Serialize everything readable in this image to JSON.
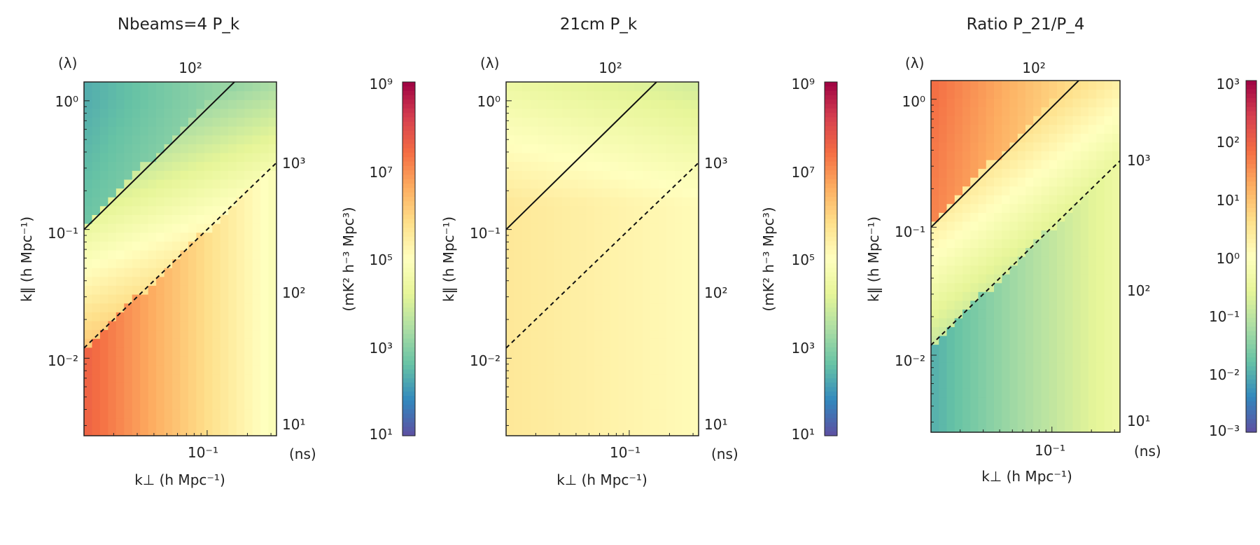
{
  "chart_data": [
    {
      "type": "heatmap",
      "title": "Nbeams=4 P_k",
      "xlabel": "k⊥ (h Mpc⁻¹)",
      "ylabel": "k‖ (h Mpc⁻¹)",
      "top_axis_unit": "(λ)",
      "top_ticks": [
        "10²"
      ],
      "right_axis_unit": "(ns)",
      "right_ticks": [
        "10³",
        "10²",
        "10¹"
      ],
      "x_ticks": [
        "10⁻¹"
      ],
      "y_ticks": [
        "10⁰",
        "10⁻¹",
        "10⁻²"
      ],
      "xlim": [
        0.012,
        0.33
      ],
      "ylim": [
        0.0025,
        1.4
      ],
      "log_scale": true,
      "colorbar": {
        "label": "(mK² h⁻³ Mpc³)",
        "ticks": [
          "10⁹",
          "10⁷",
          "10⁵",
          "10³",
          "10¹"
        ],
        "log_range": [
          1,
          9
        ],
        "colormap": [
          "#5e4fa2",
          "#3288bd",
          "#66c2a5",
          "#abdda4",
          "#e6f598",
          "#ffffbf",
          "#fee08b",
          "#fdae61",
          "#f46d43",
          "#d53e4f",
          "#9e0142"
        ]
      },
      "lines": [
        {
          "name": "horizon",
          "style": "solid",
          "points": [
            [
              0.012,
              0.1
            ],
            [
              0.16,
              1.4
            ]
          ]
        },
        {
          "name": "beam",
          "style": "dashed",
          "points": [
            [
              0.012,
              0.012
            ],
            [
              0.33,
              0.33
            ]
          ]
        }
      ],
      "field": {
        "kind": "pk4",
        "log_min": 1,
        "log_max": 9
      }
    },
    {
      "type": "heatmap",
      "title": "21cm P_k",
      "xlabel": "k⊥ (h Mpc⁻¹)",
      "ylabel": "k‖ (h Mpc⁻¹)",
      "top_axis_unit": "(λ)",
      "top_ticks": [
        "10²"
      ],
      "right_axis_unit": "(ns)",
      "right_ticks": [
        "10³",
        "10²",
        "10¹"
      ],
      "x_ticks": [
        "10⁻¹"
      ],
      "y_ticks": [
        "10⁰",
        "10⁻¹",
        "10⁻²"
      ],
      "xlim": [
        0.012,
        0.33
      ],
      "ylim": [
        0.0025,
        1.4
      ],
      "log_scale": true,
      "colorbar": {
        "label": "(mK² h⁻³ Mpc³)",
        "ticks": [
          "10⁹",
          "10⁷",
          "10⁵",
          "10³",
          "10¹"
        ],
        "log_range": [
          1,
          9
        ],
        "colormap": [
          "#5e4fa2",
          "#3288bd",
          "#66c2a5",
          "#abdda4",
          "#e6f598",
          "#ffffbf",
          "#fee08b",
          "#fdae61",
          "#f46d43",
          "#d53e4f",
          "#9e0142"
        ]
      },
      "lines": [
        {
          "name": "horizon",
          "style": "solid",
          "points": [
            [
              0.012,
              0.1
            ],
            [
              0.16,
              1.4
            ]
          ]
        },
        {
          "name": "beam",
          "style": "dashed",
          "points": [
            [
              0.012,
              0.012
            ],
            [
              0.33,
              0.33
            ]
          ]
        }
      ],
      "field": {
        "kind": "p21",
        "log_min": 1,
        "log_max": 9
      }
    },
    {
      "type": "heatmap",
      "title": "Ratio P_21/P_4",
      "xlabel": "k⊥ (h Mpc⁻¹)",
      "ylabel": "k‖ (h Mpc⁻¹)",
      "top_axis_unit": "(λ)",
      "top_ticks": [
        "10²"
      ],
      "right_axis_unit": "(ns)",
      "right_ticks": [
        "10³",
        "10²",
        "10¹"
      ],
      "x_ticks": [
        "10⁻¹"
      ],
      "y_ticks": [
        "10⁰",
        "10⁻¹",
        "10⁻²"
      ],
      "xlim": [
        0.012,
        0.33
      ],
      "ylim": [
        0.0025,
        1.4
      ],
      "log_scale": true,
      "colorbar": {
        "label": "",
        "ticks": [
          "10³",
          "10²",
          "10¹",
          "10⁰",
          "10⁻¹",
          "10⁻²",
          "10⁻³"
        ],
        "log_range": [
          -3,
          3
        ],
        "colormap": [
          "#5e4fa2",
          "#3288bd",
          "#66c2a5",
          "#abdda4",
          "#e6f598",
          "#ffffbf",
          "#fee08b",
          "#fdae61",
          "#f46d43",
          "#d53e4f",
          "#9e0142"
        ]
      },
      "lines": [
        {
          "name": "horizon",
          "style": "solid",
          "points": [
            [
              0.012,
              0.1
            ],
            [
              0.16,
              1.4
            ]
          ]
        },
        {
          "name": "beam",
          "style": "dashed",
          "points": [
            [
              0.012,
              0.012
            ],
            [
              0.33,
              0.33
            ]
          ]
        }
      ],
      "field": {
        "kind": "ratio",
        "log_min": -3,
        "log_max": 3
      }
    }
  ]
}
